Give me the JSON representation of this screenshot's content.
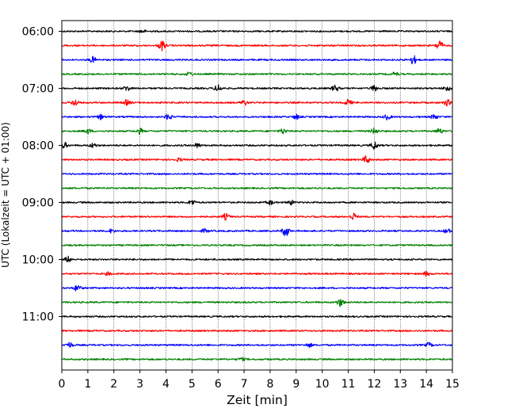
{
  "chart_data": {
    "type": "line",
    "title": "",
    "xlabel": "Zeit  [min]",
    "ylabel": "UTC (Lokalzeit = UTC + 01:00)",
    "xlim": [
      0,
      15
    ],
    "x_ticks": [
      "0",
      "1",
      "2",
      "3",
      "4",
      "5",
      "6",
      "7",
      "8",
      "9",
      "10",
      "11",
      "12",
      "13",
      "14",
      "15"
    ],
    "y_tick_labels": [
      "06:00",
      "07:00",
      "08:00",
      "09:00",
      "10:00",
      "11:00"
    ],
    "grid": "vertical dotted gridlines at each minute",
    "legend": "none",
    "trace_colors": [
      "#000000",
      "#ff0000",
      "#0000ff",
      "#008000"
    ],
    "traces": [
      {
        "start": "06:00",
        "color": "#000000",
        "events": [
          [
            3.1,
            0.2
          ]
        ]
      },
      {
        "start": "06:15",
        "color": "#ff0000",
        "events": [
          [
            3.85,
            0.7
          ],
          [
            14.5,
            0.7
          ]
        ]
      },
      {
        "start": "06:30",
        "color": "#0000ff",
        "events": [
          [
            1.2,
            0.4
          ],
          [
            13.5,
            0.6
          ]
        ]
      },
      {
        "start": "06:45",
        "color": "#008000",
        "events": [
          [
            4.9,
            0.25
          ],
          [
            12.8,
            0.25
          ]
        ]
      },
      {
        "start": "07:00",
        "color": "#000000",
        "events": [
          [
            2.5,
            0.35
          ],
          [
            6.0,
            0.5
          ],
          [
            10.5,
            0.45
          ],
          [
            12.0,
            0.4
          ],
          [
            14.8,
            0.35
          ]
        ]
      },
      {
        "start": "07:15",
        "color": "#ff0000",
        "events": [
          [
            0.5,
            0.45
          ],
          [
            2.5,
            0.35
          ],
          [
            7.0,
            0.35
          ],
          [
            11.0,
            0.4
          ],
          [
            14.8,
            0.4
          ]
        ]
      },
      {
        "start": "07:30",
        "color": "#0000ff",
        "events": [
          [
            1.5,
            0.3
          ],
          [
            4.1,
            0.4
          ],
          [
            9.0,
            0.3
          ],
          [
            12.5,
            0.35
          ],
          [
            14.3,
            0.35
          ]
        ]
      },
      {
        "start": "07:45",
        "color": "#008000",
        "events": [
          [
            1.0,
            0.35
          ],
          [
            3.0,
            0.35
          ],
          [
            8.5,
            0.35
          ],
          [
            12.0,
            0.4
          ],
          [
            14.5,
            0.35
          ]
        ]
      },
      {
        "start": "08:00",
        "color": "#000000",
        "events": [
          [
            0.1,
            0.35
          ],
          [
            1.2,
            0.3
          ],
          [
            5.2,
            0.3
          ],
          [
            12.0,
            0.55
          ]
        ]
      },
      {
        "start": "08:15",
        "color": "#ff0000",
        "events": [
          [
            4.5,
            0.2
          ],
          [
            11.7,
            0.5
          ]
        ]
      },
      {
        "start": "08:30",
        "color": "#0000ff",
        "events": []
      },
      {
        "start": "08:45",
        "color": "#008000",
        "events": []
      },
      {
        "start": "09:00",
        "color": "#000000",
        "events": [
          [
            5.0,
            0.35
          ],
          [
            8.0,
            0.3
          ],
          [
            8.8,
            0.3
          ]
        ]
      },
      {
        "start": "09:15",
        "color": "#ff0000",
        "events": [
          [
            6.3,
            0.4
          ],
          [
            11.2,
            0.45
          ]
        ]
      },
      {
        "start": "09:30",
        "color": "#0000ff",
        "events": [
          [
            1.9,
            0.25
          ],
          [
            5.5,
            0.25
          ],
          [
            8.6,
            0.75
          ],
          [
            14.8,
            0.3
          ]
        ]
      },
      {
        "start": "09:45",
        "color": "#008000",
        "events": []
      },
      {
        "start": "10:00",
        "color": "#000000",
        "events": [
          [
            0.25,
            0.4
          ]
        ]
      },
      {
        "start": "10:15",
        "color": "#ff0000",
        "events": [
          [
            1.8,
            0.2
          ],
          [
            14.0,
            0.3
          ]
        ]
      },
      {
        "start": "10:30",
        "color": "#0000ff",
        "events": [
          [
            0.6,
            0.45
          ]
        ]
      },
      {
        "start": "10:45",
        "color": "#008000",
        "events": [
          [
            10.7,
            0.55
          ]
        ]
      },
      {
        "start": "11:00",
        "color": "#000000",
        "events": []
      },
      {
        "start": "11:15",
        "color": "#ff0000",
        "events": []
      },
      {
        "start": "11:30",
        "color": "#0000ff",
        "events": [
          [
            0.3,
            0.35
          ],
          [
            9.5,
            0.25
          ],
          [
            14.1,
            0.3
          ]
        ]
      },
      {
        "start": "11:45",
        "color": "#008000",
        "events": [
          [
            6.9,
            0.2
          ]
        ]
      }
    ]
  }
}
